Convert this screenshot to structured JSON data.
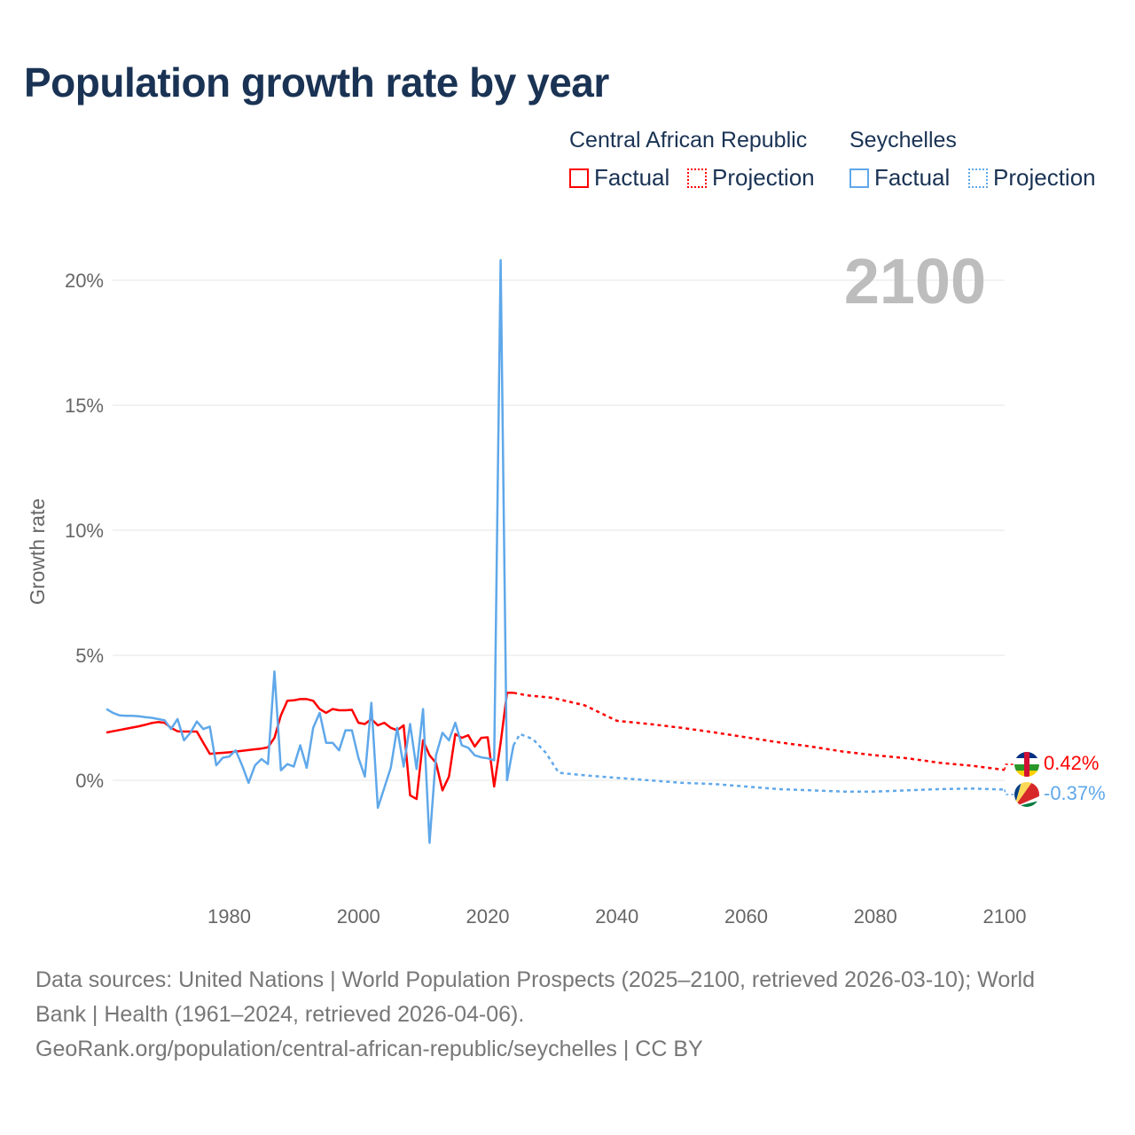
{
  "title": "Population growth rate by year",
  "legend": {
    "groups": [
      {
        "name": "Central African Republic",
        "color": "#ff0000",
        "factual": "Factual",
        "projection": "Projection"
      },
      {
        "name": "Seychelles",
        "color": "#5fa8ea",
        "factual": "Factual",
        "projection": "Projection"
      }
    ]
  },
  "year_label": "2100",
  "chart_data": {
    "type": "line",
    "ylabel": "Growth rate",
    "xlim": [
      1961,
      2100
    ],
    "ylim": [
      -4.5,
      22
    ],
    "yticks": [
      0,
      5,
      10,
      15,
      20
    ],
    "ytick_labels": [
      "0%",
      "5%",
      "10%",
      "15%",
      "20%"
    ],
    "xticks": [
      1980,
      2000,
      2020,
      2040,
      2060,
      2080,
      2100
    ],
    "xtick_labels": [
      "1980",
      "2000",
      "2020",
      "2040",
      "2060",
      "2080",
      "2100"
    ],
    "grid": true,
    "series": [
      {
        "name": "Central African Republic",
        "kind": "factual",
        "color": "#ff0000",
        "x": [
          1961,
          1962,
          1963,
          1964,
          1965,
          1966,
          1967,
          1968,
          1969,
          1970,
          1971,
          1972,
          1973,
          1974,
          1975,
          1976,
          1977,
          1978,
          1979,
          1980,
          1981,
          1982,
          1983,
          1984,
          1985,
          1986,
          1987,
          1988,
          1989,
          1990,
          1991,
          1992,
          1993,
          1994,
          1995,
          1996,
          1997,
          1998,
          1999,
          2000,
          2001,
          2002,
          2003,
          2004,
          2005,
          2006,
          2007,
          2008,
          2009,
          2010,
          2011,
          2012,
          2013,
          2014,
          2015,
          2016,
          2017,
          2018,
          2019,
          2020,
          2021,
          2022,
          2023,
          2024
        ],
        "y": [
          1.91,
          1.96,
          2.01,
          2.06,
          2.11,
          2.16,
          2.22,
          2.29,
          2.33,
          2.3,
          2.1,
          1.96,
          1.95,
          1.95,
          1.95,
          1.5,
          1.06,
          1.08,
          1.1,
          1.12,
          1.15,
          1.18,
          1.21,
          1.24,
          1.27,
          1.32,
          1.7,
          2.6,
          3.18,
          3.2,
          3.25,
          3.25,
          3.18,
          2.85,
          2.7,
          2.85,
          2.8,
          2.8,
          2.82,
          2.3,
          2.25,
          2.45,
          2.2,
          2.3,
          2.1,
          2.0,
          2.2,
          -0.6,
          -0.75,
          1.6,
          1.0,
          0.7,
          -0.4,
          0.15,
          1.85,
          1.7,
          1.8,
          1.35,
          1.7,
          1.72,
          -0.25,
          1.5,
          3.5,
          3.5
        ]
      },
      {
        "name": "Central African Republic",
        "kind": "projection",
        "color": "#ff0000",
        "x": [
          2024,
          2026,
          2030,
          2035,
          2040,
          2045,
          2050,
          2055,
          2060,
          2065,
          2070,
          2075,
          2080,
          2085,
          2090,
          2095,
          2100
        ],
        "y": [
          3.5,
          3.4,
          3.3,
          3.0,
          2.38,
          2.25,
          2.1,
          1.92,
          1.72,
          1.52,
          1.35,
          1.15,
          1.0,
          0.88,
          0.7,
          0.58,
          0.42
        ],
        "end_label": "0.42%"
      },
      {
        "name": "Seychelles",
        "kind": "factual",
        "color": "#5fa8ea",
        "x": [
          1961,
          1962,
          1963,
          1964,
          1965,
          1966,
          1967,
          1968,
          1969,
          1970,
          1971,
          1972,
          1973,
          1974,
          1975,
          1976,
          1977,
          1978,
          1979,
          1980,
          1981,
          1982,
          1983,
          1984,
          1985,
          1986,
          1987,
          1988,
          1989,
          1990,
          1991,
          1992,
          1993,
          1994,
          1995,
          1996,
          1997,
          1998,
          1999,
          2000,
          2001,
          2002,
          2003,
          2004,
          2005,
          2006,
          2007,
          2008,
          2009,
          2010,
          2011,
          2012,
          2013,
          2014,
          2015,
          2016,
          2017,
          2018,
          2019,
          2020,
          2021,
          2022,
          2023,
          2024
        ],
        "y": [
          2.85,
          2.7,
          2.6,
          2.58,
          2.58,
          2.56,
          2.53,
          2.5,
          2.45,
          2.4,
          2.05,
          2.45,
          1.6,
          1.9,
          2.35,
          2.05,
          2.15,
          0.6,
          0.9,
          0.95,
          1.2,
          0.6,
          -0.1,
          0.6,
          0.85,
          0.65,
          4.35,
          0.4,
          0.65,
          0.55,
          1.4,
          0.5,
          2.1,
          2.7,
          1.5,
          1.5,
          1.2,
          2.0,
          2.0,
          0.9,
          0.15,
          3.1,
          -1.1,
          -0.3,
          0.5,
          2.1,
          0.55,
          2.25,
          0.45,
          2.85,
          -2.5,
          1.0,
          1.9,
          1.6,
          2.3,
          1.4,
          1.3,
          1.0,
          0.92,
          0.88,
          0.8,
          20.8,
          0.0,
          1.4
        ]
      },
      {
        "name": "Seychelles",
        "kind": "projection",
        "color": "#5fa8ea",
        "x": [
          2024,
          2025,
          2027,
          2029,
          2031,
          2035,
          2040,
          2045,
          2050,
          2055,
          2060,
          2065,
          2070,
          2075,
          2080,
          2085,
          2090,
          2095,
          2100
        ],
        "y": [
          1.4,
          1.85,
          1.65,
          1.1,
          0.3,
          0.2,
          0.1,
          0.0,
          -0.1,
          -0.15,
          -0.25,
          -0.35,
          -0.4,
          -0.45,
          -0.45,
          -0.4,
          -0.35,
          -0.33,
          -0.37
        ],
        "end_label": "-0.37%"
      }
    ]
  },
  "footer": {
    "line1": "Data sources: United Nations | World Population Prospects (2025–2100, retrieved 2026-03-10); World",
    "line2": "Bank | Health (1961–2024, retrieved 2026-04-06).",
    "line3": "GeoRank.org/population/central-african-republic/seychelles | CC BY"
  }
}
